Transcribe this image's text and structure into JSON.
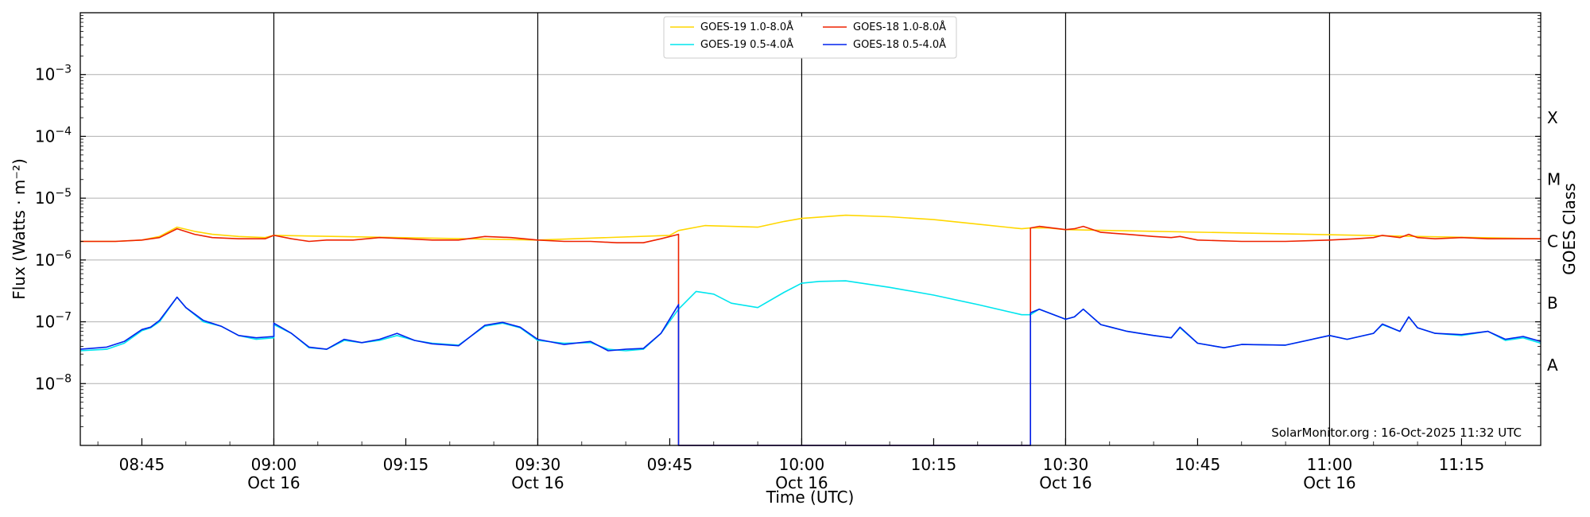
{
  "chart_data": {
    "type": "line",
    "xlabel": "Time (UTC)",
    "ylabel": "Flux (Watts · m⁻²)",
    "y2label": "GOES Class",
    "yscale": "log",
    "ylim": [
      1e-09,
      0.01
    ],
    "xlim": [
      "08:38",
      "11:24"
    ],
    "grid": "horizontal",
    "legend_placement": "top-center",
    "credit": "SolarMonitor.org : 16-Oct-2025 11:32 UTC",
    "y_ticks": [
      {
        "value": 0.001,
        "base": "10",
        "exp": "−3"
      },
      {
        "value": 0.0001,
        "base": "10",
        "exp": "−4"
      },
      {
        "value": 1e-05,
        "base": "10",
        "exp": "−5"
      },
      {
        "value": 1e-06,
        "base": "10",
        "exp": "−6"
      },
      {
        "value": 1e-07,
        "base": "10",
        "exp": "−7"
      },
      {
        "value": 1e-08,
        "base": "10",
        "exp": "−8"
      }
    ],
    "x_ticks": [
      {
        "time": "08:45",
        "label": "08:45",
        "sub": ""
      },
      {
        "time": "09:00",
        "label": "09:00",
        "sub": "Oct 16"
      },
      {
        "time": "09:15",
        "label": "09:15",
        "sub": ""
      },
      {
        "time": "09:30",
        "label": "09:30",
        "sub": "Oct 16"
      },
      {
        "time": "09:45",
        "label": "09:45",
        "sub": ""
      },
      {
        "time": "10:00",
        "label": "10:00",
        "sub": "Oct 16"
      },
      {
        "time": "10:15",
        "label": "10:15",
        "sub": ""
      },
      {
        "time": "10:30",
        "label": "10:30",
        "sub": "Oct 16"
      },
      {
        "time": "10:45",
        "label": "10:45",
        "sub": ""
      },
      {
        "time": "11:00",
        "label": "11:00",
        "sub": "Oct 16"
      },
      {
        "time": "11:15",
        "label": "11:15",
        "sub": ""
      }
    ],
    "class_labels": [
      {
        "label": "X",
        "value": 0.0002
      },
      {
        "label": "M",
        "value": 2e-05
      },
      {
        "label": "C",
        "value": 2e-06
      },
      {
        "label": "B",
        "value": 2e-07
      },
      {
        "label": "A",
        "value": 2e-08
      }
    ],
    "series": [
      {
        "name": "GOES-19 1.0-8.0Å",
        "color": "#ffd700",
        "points": [
          [
            "08:38",
            2e-06
          ],
          [
            "08:42",
            2e-06
          ],
          [
            "08:45",
            2.1e-06
          ],
          [
            "08:47",
            2.4e-06
          ],
          [
            "08:49",
            3.4e-06
          ],
          [
            "08:51",
            2.9e-06
          ],
          [
            "08:53",
            2.6e-06
          ],
          [
            "08:56",
            2.4e-06
          ],
          [
            "08:59",
            2.3e-06
          ],
          [
            "09:00",
            2.5e-06
          ],
          [
            "09:30",
            2.1e-06
          ],
          [
            "09:45",
            2.5e-06
          ],
          [
            "09:46",
            3e-06
          ],
          [
            "09:49",
            3.6e-06
          ],
          [
            "09:52",
            3.5e-06
          ],
          [
            "09:55",
            3.4e-06
          ],
          [
            "09:58",
            4.2e-06
          ],
          [
            "10:00",
            4.7e-06
          ],
          [
            "10:05",
            5.3e-06
          ],
          [
            "10:10",
            5e-06
          ],
          [
            "10:15",
            4.5e-06
          ],
          [
            "10:20",
            3.8e-06
          ],
          [
            "10:25",
            3.2e-06
          ],
          [
            "10:26",
            3.3e-06
          ],
          [
            "10:28",
            3.3e-06
          ],
          [
            "10:30",
            3.1e-06
          ],
          [
            "11:24",
            2.2e-06
          ]
        ]
      },
      {
        "name": "GOES-18 1.0-8.0Å",
        "color": "#ee2200",
        "points": [
          [
            "08:38",
            2e-06
          ],
          [
            "08:42",
            2e-06
          ],
          [
            "08:45",
            2.1e-06
          ],
          [
            "08:47",
            2.3e-06
          ],
          [
            "08:49",
            3.2e-06
          ],
          [
            "08:51",
            2.6e-06
          ],
          [
            "08:53",
            2.3e-06
          ],
          [
            "08:56",
            2.2e-06
          ],
          [
            "08:59",
            2.2e-06
          ],
          [
            "09:00",
            2.5e-06
          ],
          [
            "09:02",
            2.2e-06
          ],
          [
            "09:04",
            2e-06
          ],
          [
            "09:06",
            2.1e-06
          ],
          [
            "09:09",
            2.1e-06
          ],
          [
            "09:12",
            2.3e-06
          ],
          [
            "09:15",
            2.2e-06
          ],
          [
            "09:18",
            2.1e-06
          ],
          [
            "09:21",
            2.1e-06
          ],
          [
            "09:24",
            2.4e-06
          ],
          [
            "09:27",
            2.3e-06
          ],
          [
            "09:30",
            2.1e-06
          ],
          [
            "09:33",
            2e-06
          ],
          [
            "09:36",
            2e-06
          ],
          [
            "09:39",
            1.9e-06
          ],
          [
            "09:42",
            1.9e-06
          ],
          [
            "09:44",
            2.2e-06
          ],
          [
            "09:46",
            2.6e-06
          ],
          [
            "09:46",
            1e-09
          ],
          [
            "10:26",
            1e-09
          ],
          [
            "10:26",
            3.3e-06
          ],
          [
            "10:27",
            3.5e-06
          ],
          [
            "10:30",
            3.1e-06
          ],
          [
            "10:31",
            3.2e-06
          ],
          [
            "10:32",
            3.5e-06
          ],
          [
            "10:34",
            2.8e-06
          ],
          [
            "10:37",
            2.6e-06
          ],
          [
            "10:40",
            2.4e-06
          ],
          [
            "10:42",
            2.3e-06
          ],
          [
            "10:43",
            2.4e-06
          ],
          [
            "10:45",
            2.1e-06
          ],
          [
            "10:50",
            2e-06
          ],
          [
            "10:55",
            2e-06
          ],
          [
            "11:00",
            2.1e-06
          ],
          [
            "11:03",
            2.2e-06
          ],
          [
            "11:05",
            2.3e-06
          ],
          [
            "11:06",
            2.5e-06
          ],
          [
            "11:08",
            2.3e-06
          ],
          [
            "11:09",
            2.6e-06
          ],
          [
            "11:10",
            2.3e-06
          ],
          [
            "11:12",
            2.2e-06
          ],
          [
            "11:15",
            2.3e-06
          ],
          [
            "11:18",
            2.2e-06
          ],
          [
            "11:21",
            2.2e-06
          ],
          [
            "11:24",
            2.2e-06
          ]
        ]
      },
      {
        "name": "GOES-19 0.5-4.0Å",
        "color": "#00e5ee",
        "points": [
          [
            "08:38",
            3.4e-08
          ],
          [
            "08:41",
            3.6e-08
          ],
          [
            "08:43",
            4.5e-08
          ],
          [
            "08:45",
            7.2e-08
          ],
          [
            "08:46",
            8e-08
          ],
          [
            "08:47",
            1e-07
          ],
          [
            "08:49",
            2.5e-07
          ],
          [
            "08:50",
            1.7e-07
          ],
          [
            "08:52",
            1e-07
          ],
          [
            "08:54",
            8.5e-08
          ],
          [
            "08:56",
            6e-08
          ],
          [
            "08:58",
            5.2e-08
          ],
          [
            "09:00",
            5.5e-08
          ],
          [
            "09:00",
            9e-08
          ],
          [
            "09:02",
            6.5e-08
          ],
          [
            "09:04",
            3.8e-08
          ],
          [
            "09:06",
            3.6e-08
          ],
          [
            "09:08",
            5e-08
          ],
          [
            "09:10",
            4.6e-08
          ],
          [
            "09:12",
            5e-08
          ],
          [
            "09:14",
            6e-08
          ],
          [
            "09:16",
            5e-08
          ],
          [
            "09:18",
            4.5e-08
          ],
          [
            "09:21",
            4.2e-08
          ],
          [
            "09:24",
            8.5e-08
          ],
          [
            "09:26",
            9.5e-08
          ],
          [
            "09:28",
            8e-08
          ],
          [
            "09:30",
            5e-08
          ],
          [
            "09:33",
            4.5e-08
          ],
          [
            "09:36",
            4.6e-08
          ],
          [
            "09:38",
            3.6e-08
          ],
          [
            "09:40",
            3.4e-08
          ],
          [
            "09:42",
            3.6e-08
          ],
          [
            "09:44",
            6.5e-08
          ],
          [
            "09:46",
            1.6e-07
          ],
          [
            "09:48",
            3.1e-07
          ],
          [
            "09:50",
            2.8e-07
          ],
          [
            "09:52",
            2e-07
          ],
          [
            "09:55",
            1.7e-07
          ],
          [
            "09:58",
            3e-07
          ],
          [
            "10:00",
            4.2e-07
          ],
          [
            "10:02",
            4.5e-07
          ],
          [
            "10:05",
            4.6e-07
          ],
          [
            "10:10",
            3.6e-07
          ],
          [
            "10:15",
            2.7e-07
          ],
          [
            "10:20",
            1.9e-07
          ],
          [
            "10:25",
            1.3e-07
          ],
          [
            "10:26",
            1.3e-07
          ],
          [
            "10:27",
            1.6e-07
          ],
          [
            "10:30",
            1.1e-07
          ],
          [
            "10:31",
            1.2e-07
          ],
          [
            "10:32",
            1.6e-07
          ],
          [
            "10:34",
            9e-08
          ],
          [
            "10:37",
            7e-08
          ],
          [
            "10:40",
            6e-08
          ],
          [
            "10:42",
            5.5e-08
          ],
          [
            "10:43",
            8e-08
          ],
          [
            "10:45",
            4.5e-08
          ],
          [
            "10:48",
            3.8e-08
          ],
          [
            "10:50",
            4.3e-08
          ],
          [
            "10:55",
            4.2e-08
          ],
          [
            "11:00",
            6e-08
          ],
          [
            "11:02",
            5.2e-08
          ],
          [
            "11:05",
            6.5e-08
          ],
          [
            "11:06",
            9e-08
          ],
          [
            "11:08",
            7e-08
          ],
          [
            "11:09",
            1.2e-07
          ],
          [
            "11:10",
            8e-08
          ],
          [
            "11:12",
            6.5e-08
          ],
          [
            "11:15",
            6e-08
          ],
          [
            "11:18",
            7e-08
          ],
          [
            "11:20",
            5e-08
          ],
          [
            "11:22",
            5.5e-08
          ],
          [
            "11:24",
            4.5e-08
          ]
        ]
      },
      {
        "name": "GOES-18 0.5-4.0Å",
        "color": "#0022ee",
        "points": [
          [
            "08:38",
            3.6e-08
          ],
          [
            "08:41",
            3.9e-08
          ],
          [
            "08:43",
            4.8e-08
          ],
          [
            "08:45",
            7.5e-08
          ],
          [
            "08:46",
            8.2e-08
          ],
          [
            "08:47",
            1.05e-07
          ],
          [
            "08:49",
            2.5e-07
          ],
          [
            "08:50",
            1.7e-07
          ],
          [
            "08:52",
            1.05e-07
          ],
          [
            "08:54",
            8.5e-08
          ],
          [
            "08:56",
            6e-08
          ],
          [
            "08:58",
            5.5e-08
          ],
          [
            "09:00",
            5.8e-08
          ],
          [
            "09:00",
            9.5e-08
          ],
          [
            "09:02",
            6.5e-08
          ],
          [
            "09:04",
            3.9e-08
          ],
          [
            "09:06",
            3.6e-08
          ],
          [
            "09:08",
            5.2e-08
          ],
          [
            "09:10",
            4.6e-08
          ],
          [
            "09:12",
            5.2e-08
          ],
          [
            "09:14",
            6.5e-08
          ],
          [
            "09:16",
            5e-08
          ],
          [
            "09:18",
            4.4e-08
          ],
          [
            "09:21",
            4.1e-08
          ],
          [
            "09:24",
            8.8e-08
          ],
          [
            "09:26",
            9.8e-08
          ],
          [
            "09:28",
            8.2e-08
          ],
          [
            "09:30",
            5.2e-08
          ],
          [
            "09:33",
            4.3e-08
          ],
          [
            "09:36",
            4.8e-08
          ],
          [
            "09:38",
            3.4e-08
          ],
          [
            "09:40",
            3.6e-08
          ],
          [
            "09:42",
            3.7e-08
          ],
          [
            "09:44",
            6.5e-08
          ],
          [
            "09:46",
            1.9e-07
          ],
          [
            "09:46",
            1e-09
          ],
          [
            "10:26",
            1e-09
          ],
          [
            "10:26",
            1.4e-07
          ],
          [
            "10:27",
            1.6e-07
          ],
          [
            "10:30",
            1.1e-07
          ],
          [
            "10:31",
            1.2e-07
          ],
          [
            "10:32",
            1.6e-07
          ],
          [
            "10:34",
            9e-08
          ],
          [
            "10:37",
            7e-08
          ],
          [
            "10:40",
            6e-08
          ],
          [
            "10:42",
            5.5e-08
          ],
          [
            "10:43",
            8.2e-08
          ],
          [
            "10:45",
            4.5e-08
          ],
          [
            "10:48",
            3.8e-08
          ],
          [
            "10:50",
            4.3e-08
          ],
          [
            "10:55",
            4.2e-08
          ],
          [
            "11:00",
            6e-08
          ],
          [
            "11:02",
            5.2e-08
          ],
          [
            "11:05",
            6.5e-08
          ],
          [
            "11:06",
            9.2e-08
          ],
          [
            "11:08",
            7e-08
          ],
          [
            "11:09",
            1.2e-07
          ],
          [
            "11:10",
            8e-08
          ],
          [
            "11:12",
            6.5e-08
          ],
          [
            "11:15",
            6.2e-08
          ],
          [
            "11:18",
            7e-08
          ],
          [
            "11:20",
            5.2e-08
          ],
          [
            "11:22",
            5.8e-08
          ],
          [
            "11:24",
            4.8e-08
          ]
        ]
      }
    ]
  }
}
